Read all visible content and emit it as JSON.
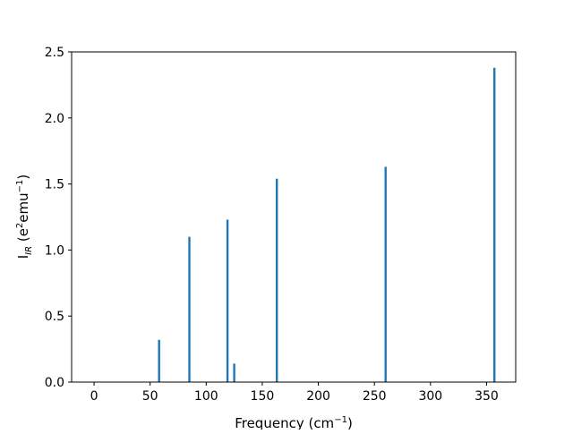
{
  "chart_data": {
    "type": "bar",
    "xlabel": "Frequency (cm",
    "xlabel_sup": "−1",
    "xlabel_end": ")",
    "ylabel": "I",
    "ylabel_sub": "IR",
    "ylabel_mid": " (e",
    "ylabel_sup1": "2",
    "ylabel_mid2": "emu",
    "ylabel_sup2": "−1",
    "ylabel_end": ")",
    "xlim": [
      -20,
      376
    ],
    "ylim": [
      0,
      2.5
    ],
    "xticks": [
      0,
      50,
      100,
      150,
      200,
      250,
      300,
      350
    ],
    "xtick_labels": [
      "0",
      "50",
      "100",
      "150",
      "200",
      "250",
      "300",
      "350"
    ],
    "yticks": [
      0,
      0.5,
      1.0,
      1.5,
      2.0,
      2.5
    ],
    "ytick_labels": [
      "0.0",
      "0.5",
      "1.0",
      "1.5",
      "2.0",
      "2.5"
    ],
    "x": [
      58,
      85,
      119,
      125,
      163,
      260,
      357
    ],
    "values": [
      0.32,
      1.1,
      1.23,
      0.14,
      1.54,
      1.63,
      2.38
    ],
    "grid": false,
    "bar_color": "#1f77b4"
  }
}
